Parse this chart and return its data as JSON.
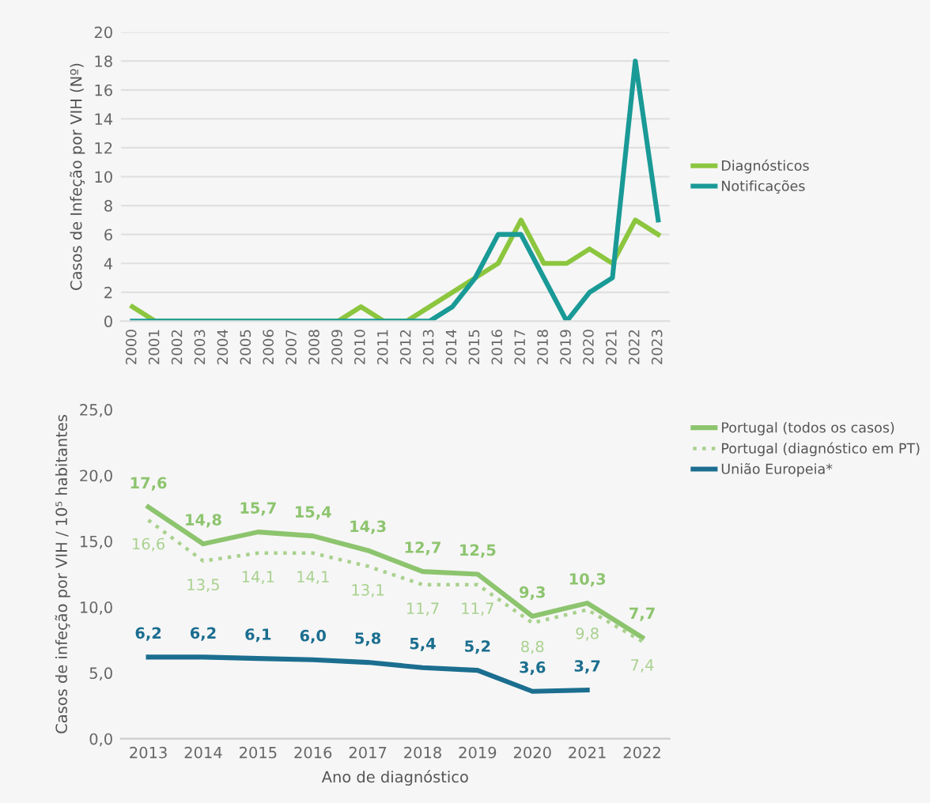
{
  "chart_data": [
    {
      "type": "line",
      "ylabel": "Casos de Infeção por VIH (Nº)",
      "categories": [
        "2000",
        "2001",
        "2002",
        "2003",
        "2004",
        "2005",
        "2006",
        "2007",
        "2008",
        "2009",
        "2010",
        "2011",
        "2012",
        "2013",
        "2014",
        "2015",
        "2016",
        "2017",
        "2018",
        "2019",
        "2020",
        "2021",
        "2022",
        "2023"
      ],
      "series": [
        {
          "name": "Diagnósticos",
          "color": "#8cc63f",
          "values": [
            1,
            0,
            0,
            0,
            0,
            0,
            0,
            0,
            0,
            0,
            1,
            0,
            0,
            1,
            2,
            3,
            4,
            7,
            4,
            4,
            5,
            4,
            7,
            6
          ]
        },
        {
          "name": "Notificações",
          "color": "#1a9a96",
          "values": [
            0,
            0,
            0,
            0,
            0,
            0,
            0,
            0,
            0,
            0,
            0,
            0,
            0,
            0,
            1,
            3,
            6,
            6,
            3,
            0,
            2,
            3,
            18,
            7
          ]
        }
      ],
      "ylim": [
        0,
        20
      ],
      "yticks": [
        0,
        2,
        4,
        6,
        8,
        10,
        12,
        14,
        16,
        18,
        20
      ],
      "grid": "y",
      "legend": "right",
      "marker": "none",
      "line_style": "solid"
    },
    {
      "type": "line",
      "xlabel": "Ano de diagnóstico",
      "ylabel": "Casos de infeção por VIH / 10⁵ habitantes",
      "categories": [
        "2013",
        "2014",
        "2015",
        "2016",
        "2017",
        "2018",
        "2019",
        "2020",
        "2021",
        "2022"
      ],
      "series": [
        {
          "name": "Portugal (todos os casos)",
          "color": "#8dc46e",
          "line_style": "solid",
          "values": [
            17.6,
            14.8,
            15.7,
            15.4,
            14.3,
            12.7,
            12.5,
            9.3,
            10.3,
            7.7
          ],
          "value_labels": [
            "17,6",
            "14,8",
            "15,7",
            "15,4",
            "14,3",
            "12,7",
            "12,5",
            "9,3",
            "10,3",
            "7,7"
          ]
        },
        {
          "name": "Portugal (diagnóstico em PT)",
          "color": "#a9d18e",
          "line_style": "dotted",
          "values": [
            16.6,
            13.5,
            14.1,
            14.1,
            13.1,
            11.7,
            11.7,
            8.8,
            9.8,
            7.4
          ],
          "value_labels": [
            "16,6",
            "13,5",
            "14,1",
            "14,1",
            "13,1",
            "11,7",
            "11,7",
            "8,8",
            "9,8",
            "7,4"
          ]
        },
        {
          "name": "União Europeia*",
          "color": "#1b6e8f",
          "line_style": "solid",
          "values": [
            6.2,
            6.2,
            6.1,
            6.0,
            5.8,
            5.4,
            5.2,
            3.6,
            3.7,
            null
          ],
          "value_labels": [
            "6,2",
            "6,2",
            "6,1",
            "6,0",
            "5,8",
            "5,4",
            "5,2",
            "3,6",
            "3,7",
            null
          ]
        }
      ],
      "ylim": [
        0,
        25
      ],
      "yticks": [
        {
          "value": 0,
          "label": "0,0"
        },
        {
          "value": 5,
          "label": "5,0"
        },
        {
          "value": 10,
          "label": "10,0"
        },
        {
          "value": 15,
          "label": "15,0"
        },
        {
          "value": 20,
          "label": "20,0"
        },
        {
          "value": 25,
          "label": "25,0"
        }
      ],
      "grid": false,
      "legend": "top right",
      "marker": "none"
    }
  ]
}
